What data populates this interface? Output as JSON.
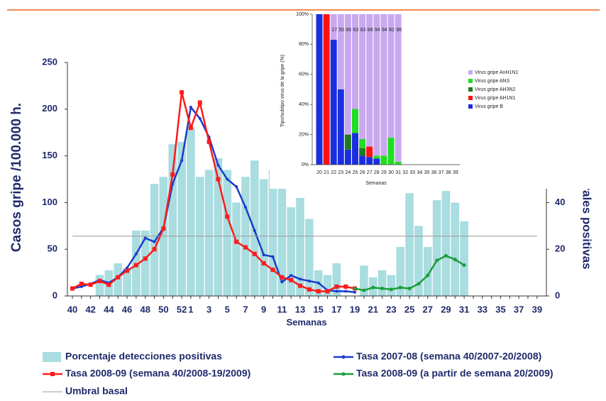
{
  "chart_data": [
    {
      "type": "combo",
      "y_label": "Casos gripe /100.000 h.",
      "y2_label": "% detecciones virales positivas",
      "x_label": "Semanas",
      "categories": [
        "40",
        null,
        "42",
        null,
        "44",
        null,
        "46",
        null,
        "48",
        null,
        "50",
        null,
        "52",
        "1",
        null,
        "3",
        null,
        "5",
        null,
        "7",
        null,
        "9",
        null,
        "11",
        null,
        "13",
        null,
        "15",
        null,
        "17",
        null,
        "19",
        null,
        "21",
        null,
        "23",
        null,
        "25",
        null,
        "27",
        null,
        "29",
        null,
        "31",
        null,
        "33",
        null,
        "35",
        null,
        "37",
        null,
        "39"
      ],
      "ylim": [
        0,
        250
      ],
      "yticks": [
        0,
        50,
        100,
        150,
        200,
        250
      ],
      "y2lim": [
        0,
        100
      ],
      "y2ticks": [
        0,
        20,
        40,
        60,
        80,
        100
      ],
      "series": [
        {
          "name": "Porcentaje detecciones positivas",
          "type": "bar",
          "axis": "y2",
          "color": "#a9dde0",
          "values": [
            null,
            null,
            null,
            9,
            11,
            14,
            12,
            28,
            28,
            48,
            51,
            65,
            66,
            72,
            51,
            54,
            59,
            54,
            40,
            51,
            58,
            50,
            54,
            54,
            38,
            42,
            33,
            11,
            9,
            14,
            null,
            null,
            13,
            8,
            11,
            9,
            21,
            44,
            30,
            21,
            41,
            45,
            40,
            32,
            null,
            null,
            null,
            null,
            null,
            null,
            null,
            null
          ]
        },
        {
          "name": "Tasa 2007-08 (semana 40/2007-20/2008)",
          "type": "line",
          "color": "#1a3ccc",
          "marker": 3,
          "values": [
            8,
            10,
            13,
            17,
            14,
            20,
            30,
            45,
            62,
            58,
            73,
            120,
            145,
            202,
            190,
            170,
            140,
            125,
            117,
            95,
            70,
            44,
            42,
            15,
            22,
            18,
            16,
            14,
            6,
            5,
            5,
            4,
            null,
            null,
            null,
            null,
            null,
            null,
            null,
            null,
            null,
            null,
            null,
            null,
            null,
            null,
            null,
            null,
            null,
            null,
            null,
            null
          ]
        },
        {
          "name": "Tasa 2008-09 (semana 40/2008-19/2009)",
          "type": "line",
          "color": "#ff1a1a",
          "marker": 6,
          "values": [
            8,
            13,
            12,
            16,
            12,
            20,
            27,
            33,
            40,
            50,
            72,
            130,
            218,
            180,
            207,
            165,
            125,
            85,
            58,
            52,
            45,
            35,
            28,
            20,
            17,
            11,
            7,
            5,
            5,
            10,
            10,
            8,
            null,
            null,
            null,
            null,
            null,
            null,
            null,
            null,
            null,
            null,
            null,
            null,
            null,
            null,
            null,
            null,
            null,
            null,
            null,
            null
          ]
        },
        {
          "name": "Tasa 2008-09 (a partir de semana 20/2009)",
          "type": "line",
          "color": "#1a9e3a",
          "marker": 4,
          "values": [
            null,
            null,
            null,
            null,
            null,
            null,
            null,
            null,
            null,
            null,
            null,
            null,
            null,
            null,
            null,
            null,
            null,
            null,
            null,
            null,
            null,
            null,
            null,
            null,
            null,
            null,
            null,
            null,
            null,
            null,
            null,
            8,
            6,
            9,
            8,
            7,
            9,
            8,
            13,
            22,
            38,
            43,
            39,
            33,
            null,
            null,
            null,
            null,
            null,
            null,
            null,
            null
          ]
        },
        {
          "name": "Umbral basal",
          "type": "line",
          "color": "#999999",
          "marker": 1,
          "values": [
            64,
            64,
            64,
            64,
            64,
            64,
            64,
            64,
            64,
            64,
            64,
            64,
            64,
            64,
            64,
            64,
            64,
            64,
            64,
            64,
            64,
            64,
            64,
            64,
            64,
            64,
            64,
            64,
            64,
            64,
            64,
            64,
            64,
            64,
            64,
            64,
            64,
            64,
            64,
            64,
            64,
            64,
            64,
            64,
            64,
            64,
            64,
            64,
            64,
            64,
            64,
            64
          ]
        }
      ]
    },
    {
      "type": "stacked_bar",
      "y_label": "Tipo/subtipo virus de la gripe (%)",
      "x_label": "Semanas",
      "categories": [
        "20",
        "21",
        "22",
        "23",
        "24",
        "25",
        "26",
        "27",
        "28",
        "29",
        "30",
        "31",
        "32",
        "33",
        "34",
        "35",
        "36",
        "37",
        "38",
        "39"
      ],
      "ylim": [
        0,
        100
      ],
      "yticks": [
        {
          "value": 0,
          "label": "0%"
        },
        {
          "value": 20,
          "label": "20%"
        },
        {
          "value": 40,
          "label": "40%"
        },
        {
          "value": 60,
          "label": "60%"
        },
        {
          "value": 80,
          "label": "80%"
        },
        {
          "value": 100,
          "label": "100%"
        }
      ],
      "series": [
        {
          "name": "Virus gripe B",
          "color": "#1a2ee0",
          "values": [
            100,
            null,
            83,
            50,
            10,
            21,
            6,
            5,
            4,
            null,
            null,
            null,
            null,
            null,
            null,
            null,
            null,
            null,
            null,
            null
          ]
        },
        {
          "name": "Virus gripe AH1N1",
          "color": "#ff1010",
          "values": [
            null,
            100,
            null,
            null,
            null,
            null,
            null,
            7,
            null,
            null,
            null,
            null,
            null,
            null,
            null,
            null,
            null,
            null,
            null,
            null
          ]
        },
        {
          "name": "Virus gripe AH3N2",
          "color": "#1f7a1f",
          "values": [
            null,
            null,
            null,
            null,
            10,
            null,
            5,
            null,
            null,
            null,
            null,
            null,
            null,
            null,
            null,
            null,
            null,
            null,
            null,
            null
          ]
        },
        {
          "name": "Virus gripe ANS",
          "color": "#22dd22",
          "values": [
            null,
            null,
            null,
            null,
            null,
            16,
            6,
            null,
            2,
            6,
            18,
            2,
            null,
            null,
            null,
            null,
            null,
            null,
            null,
            null
          ]
        },
        {
          "name": "Virus gripe AnH1N1",
          "color": "#c9a8f0",
          "data_labels": true,
          "values": [
            null,
            null,
            17,
            50,
            80,
            63,
            83,
            88,
            94,
            94,
            82,
            98,
            null,
            null,
            null,
            null,
            null,
            null,
            null,
            null
          ]
        }
      ]
    }
  ]
}
